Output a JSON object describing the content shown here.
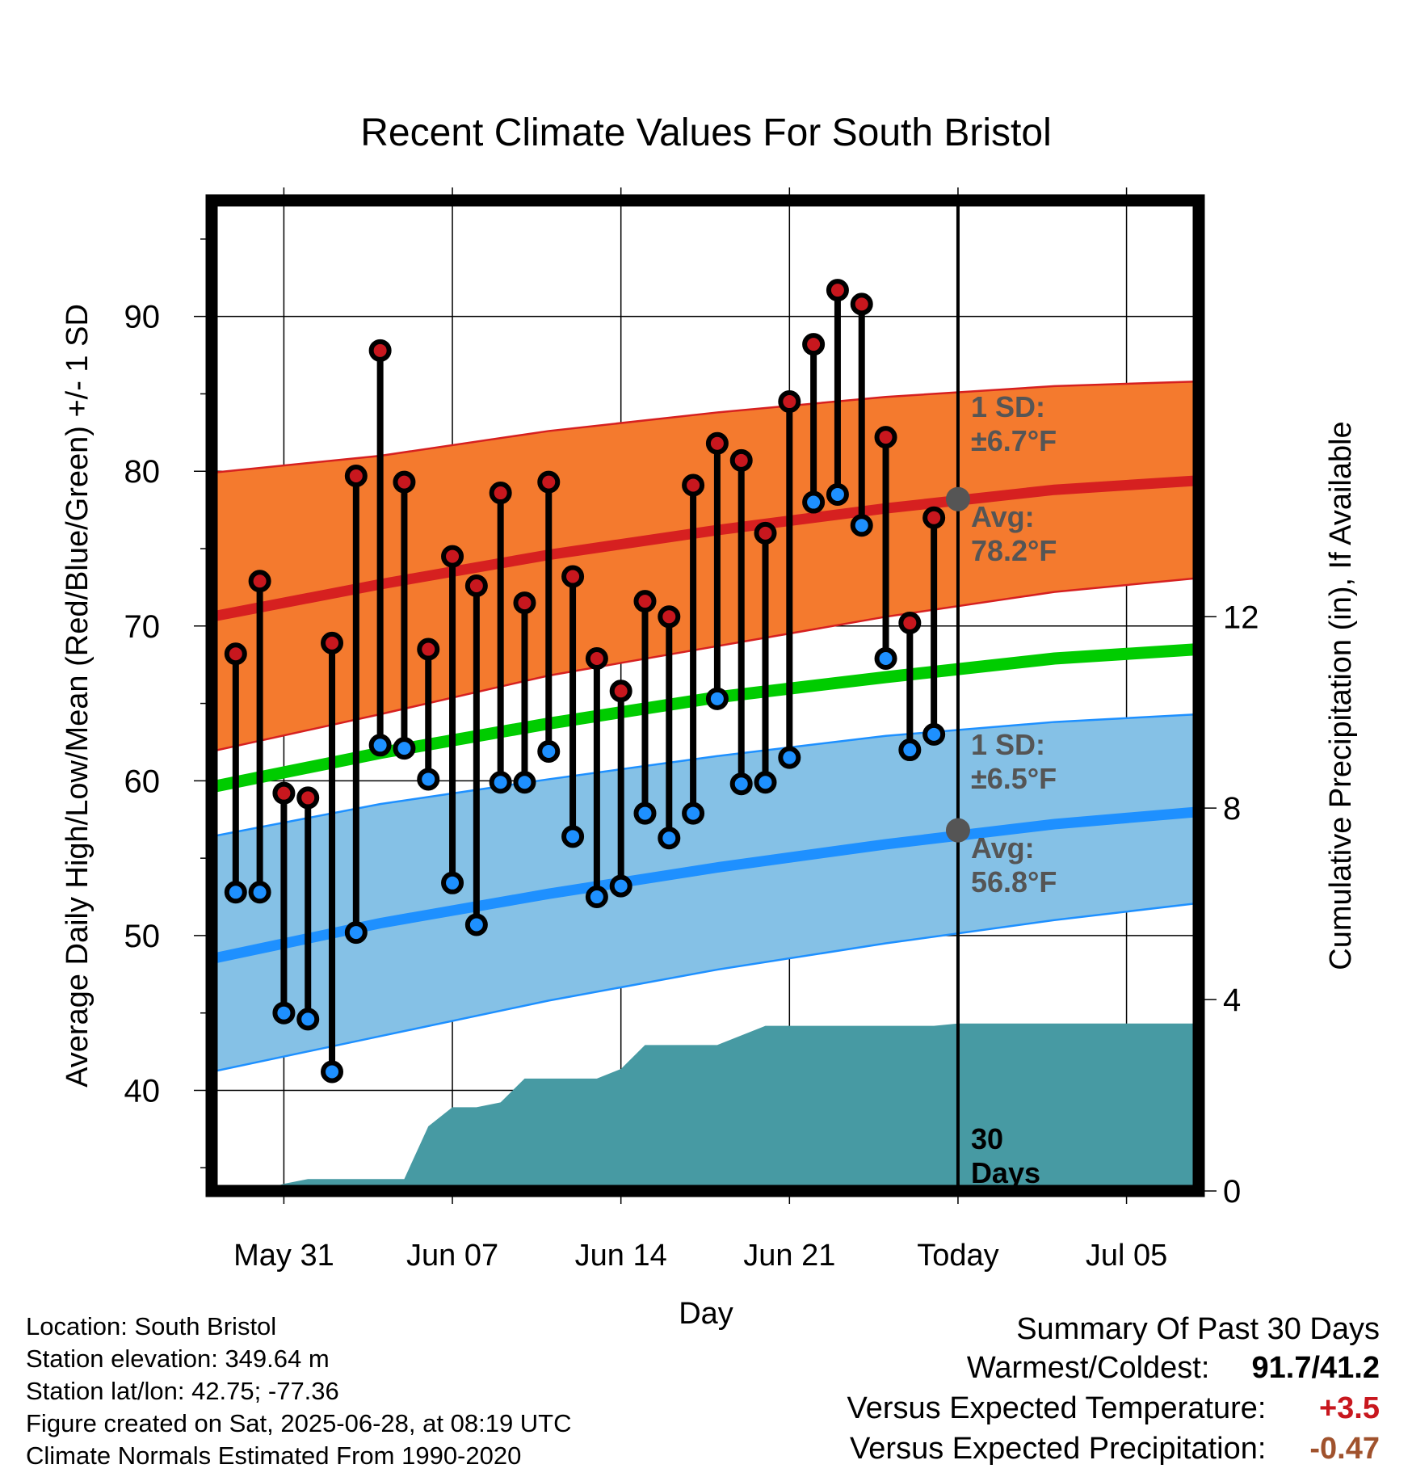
{
  "chart_data": {
    "type": "line",
    "title": "Recent Climate Values For South Bristol",
    "xlabel": "Day",
    "ylabel": "Average Daily High/Low/Mean (Red/Blue/Green) +/- 1 SD",
    "y2label": "Cumulative Precipitation (in), If Available",
    "x_tick_labels": [
      "May 31",
      "Jun 07",
      "Jun 14",
      "Jun 21",
      "Today",
      "Jul 05"
    ],
    "y_ticks": [
      40,
      50,
      60,
      70,
      80,
      90
    ],
    "y2_ticks": [
      0,
      4,
      8,
      12
    ],
    "ylim": [
      33.5,
      97.5
    ],
    "y2lim": [
      0,
      20.7
    ],
    "xlim": [
      "2025-05-28",
      "2025-07-08"
    ],
    "grid": true,
    "x_dates": [
      "2025-05-29",
      "2025-05-30",
      "2025-05-31",
      "2025-06-01",
      "2025-06-02",
      "2025-06-03",
      "2025-06-04",
      "2025-06-05",
      "2025-06-06",
      "2025-06-07",
      "2025-06-08",
      "2025-06-09",
      "2025-06-10",
      "2025-06-11",
      "2025-06-12",
      "2025-06-13",
      "2025-06-14",
      "2025-06-15",
      "2025-06-16",
      "2025-06-17",
      "2025-06-18",
      "2025-06-19",
      "2025-06-20",
      "2025-06-21",
      "2025-06-22",
      "2025-06-23",
      "2025-06-24",
      "2025-06-25",
      "2025-06-26",
      "2025-06-27"
    ],
    "series": [
      {
        "name": "High",
        "color": "#c8171e",
        "values": [
          68.2,
          72.9,
          59.2,
          58.9,
          68.9,
          79.7,
          87.8,
          79.3,
          68.5,
          74.5,
          72.6,
          78.6,
          71.5,
          79.3,
          73.2,
          67.9,
          65.8,
          71.6,
          70.6,
          79.1,
          81.8,
          80.7,
          76.0,
          84.5,
          88.2,
          91.7,
          90.8,
          82.2,
          70.2,
          77.0
        ]
      },
      {
        "name": "Low",
        "color": "#1e90ff",
        "values": [
          52.8,
          52.8,
          45.0,
          44.6,
          41.2,
          50.2,
          62.3,
          62.1,
          60.1,
          53.4,
          50.7,
          59.9,
          59.9,
          61.9,
          56.4,
          52.5,
          53.2,
          57.9,
          56.3,
          57.9,
          65.3,
          59.8,
          59.9,
          61.5,
          78.0,
          78.5,
          76.5,
          67.9,
          62.0,
          63.0
        ]
      }
    ],
    "normals": {
      "dates": [
        "2025-05-28",
        "2025-06-04",
        "2025-06-11",
        "2025-06-18",
        "2025-06-25",
        "2025-07-02",
        "2025-07-08"
      ],
      "high_avg": [
        70.6,
        72.7,
        74.6,
        76.2,
        77.6,
        78.8,
        79.4
      ],
      "high_upper": [
        79.9,
        81.0,
        82.6,
        83.8,
        84.8,
        85.5,
        85.8
      ],
      "high_lower": [
        61.9,
        64.3,
        66.8,
        68.7,
        70.6,
        72.2,
        73.1
      ],
      "mean_avg": [
        59.6,
        61.8,
        63.7,
        65.4,
        66.7,
        67.9,
        68.5
      ],
      "low_avg": [
        48.5,
        50.8,
        52.7,
        54.4,
        55.9,
        57.2,
        58.0
      ],
      "low_upper": [
        56.4,
        58.5,
        60.1,
        61.6,
        62.9,
        63.8,
        64.3
      ],
      "low_lower": [
        41.2,
        43.5,
        45.8,
        47.8,
        49.5,
        51.0,
        52.1
      ]
    },
    "precipitation": {
      "color": "#479aa3",
      "dates": [
        "2025-05-30",
        "2025-05-31",
        "2025-06-01",
        "2025-06-02",
        "2025-06-03",
        "2025-06-04",
        "2025-06-05",
        "2025-06-06",
        "2025-06-07",
        "2025-06-08",
        "2025-06-09",
        "2025-06-10",
        "2025-06-11",
        "2025-06-12",
        "2025-06-13",
        "2025-06-14",
        "2025-06-15",
        "2025-06-16",
        "2025-06-17",
        "2025-06-18",
        "2025-06-19",
        "2025-06-20",
        "2025-06-21",
        "2025-06-22",
        "2025-06-23",
        "2025-06-24",
        "2025-06-25",
        "2025-06-26",
        "2025-06-27",
        "2025-06-28",
        "2025-07-08"
      ],
      "values": [
        0.0,
        0.15,
        0.25,
        0.25,
        0.25,
        0.25,
        0.25,
        1.35,
        1.75,
        1.75,
        1.85,
        2.35,
        2.35,
        2.35,
        2.35,
        2.55,
        3.05,
        3.05,
        3.05,
        3.05,
        3.25,
        3.45,
        3.45,
        3.45,
        3.45,
        3.45,
        3.45,
        3.45,
        3.45,
        3.5,
        3.5
      ]
    },
    "annotations": {
      "high_sd_line1": "1 SD:",
      "high_sd_line2": "±6.7°F",
      "high_avg_line1": "Avg:",
      "high_avg_line2": "78.2°F",
      "low_sd_line1": "1 SD:",
      "low_sd_line2": "±6.5°F",
      "low_avg_line1": "Avg:",
      "low_avg_line2": "56.8°F",
      "today_line1": "30",
      "today_line2": "Days",
      "today_date": "2025-06-28",
      "today_high_avg": 78.2,
      "today_low_avg": 56.8
    },
    "colors": {
      "high_band": "#f47a2e",
      "high_band_edge": "#d62020",
      "high_avg_line": "#d62020",
      "mean_line": "#00cc00",
      "low_band": "#85c1e6",
      "low_band_edge": "#1e90ff",
      "low_avg_line": "#1e90ff",
      "annotation_text": "#555555"
    }
  },
  "footer": {
    "location": "Location: South Bristol",
    "elevation": "Station elevation: 349.64 m",
    "latlon": "Station lat/lon: 42.75; -77.36",
    "created": "Figure created on Sat, 2025-06-28, at 08:19 UTC",
    "normals": "Climate Normals Estimated From 1990-2020"
  },
  "summary": {
    "title": "Summary Of Past 30 Days",
    "warmest_coldest_label": "Warmest/Coldest:",
    "warmest_coldest_value": "91.7/41.2",
    "temp_label": "Versus Expected Temperature:",
    "temp_value": "+3.5",
    "temp_color": "#c8171e",
    "precip_label": "Versus Expected Precipitation:",
    "precip_value": "-0.47",
    "precip_color": "#a0522d"
  }
}
